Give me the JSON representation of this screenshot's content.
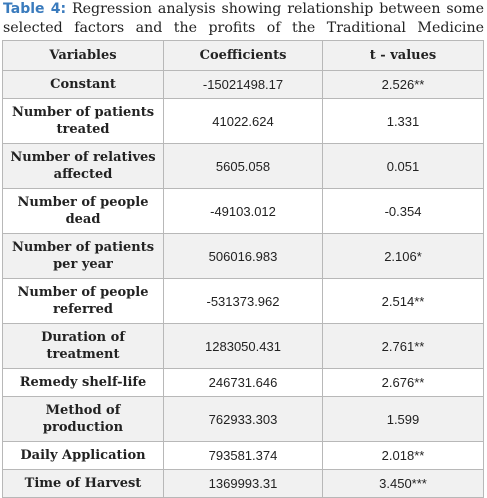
{
  "caption": {
    "label": "Table 4:",
    "text": " Regression analysis showing relationship between some selected factors and the profits of the Traditional Medicine Practitioners."
  },
  "table": {
    "headers": [
      "Variables",
      "Coefficients",
      "t - values"
    ],
    "rows": [
      {
        "variable": "Constant",
        "coefficient": "-15021498.17",
        "t_value": "2.526**"
      },
      {
        "variable": "Number of patients treated",
        "coefficient": "41022.624",
        "t_value": "1.331"
      },
      {
        "variable": "Number of relatives affected",
        "coefficient": "5605.058",
        "t_value": "0.051"
      },
      {
        "variable": "Number of people dead",
        "coefficient": "-49103.012",
        "t_value": "-0.354"
      },
      {
        "variable": "Number of patients per year",
        "coefficient": "506016.983",
        "t_value": "2.106*"
      },
      {
        "variable": "Number of people referred",
        "coefficient": "-531373.962",
        "t_value": "2.514**"
      },
      {
        "variable": "Duration of treatment",
        "coefficient": "1283050.431",
        "t_value": "2.761**"
      },
      {
        "variable": "Remedy shelf-life",
        "coefficient": "246731.646",
        "t_value": "2.676**"
      },
      {
        "variable": "Method of production",
        "coefficient": "762933.303",
        "t_value": "1.599"
      },
      {
        "variable": "Daily Application",
        "coefficient": "793581.374",
        "t_value": "2.018**"
      },
      {
        "variable": "Time of Harvest",
        "coefficient": "1369993.31",
        "t_value": "3.450***"
      }
    ]
  },
  "colors": {
    "label": "#3a7bbd",
    "stripe": "#f1f1f1",
    "border": "#b8b8b8"
  }
}
